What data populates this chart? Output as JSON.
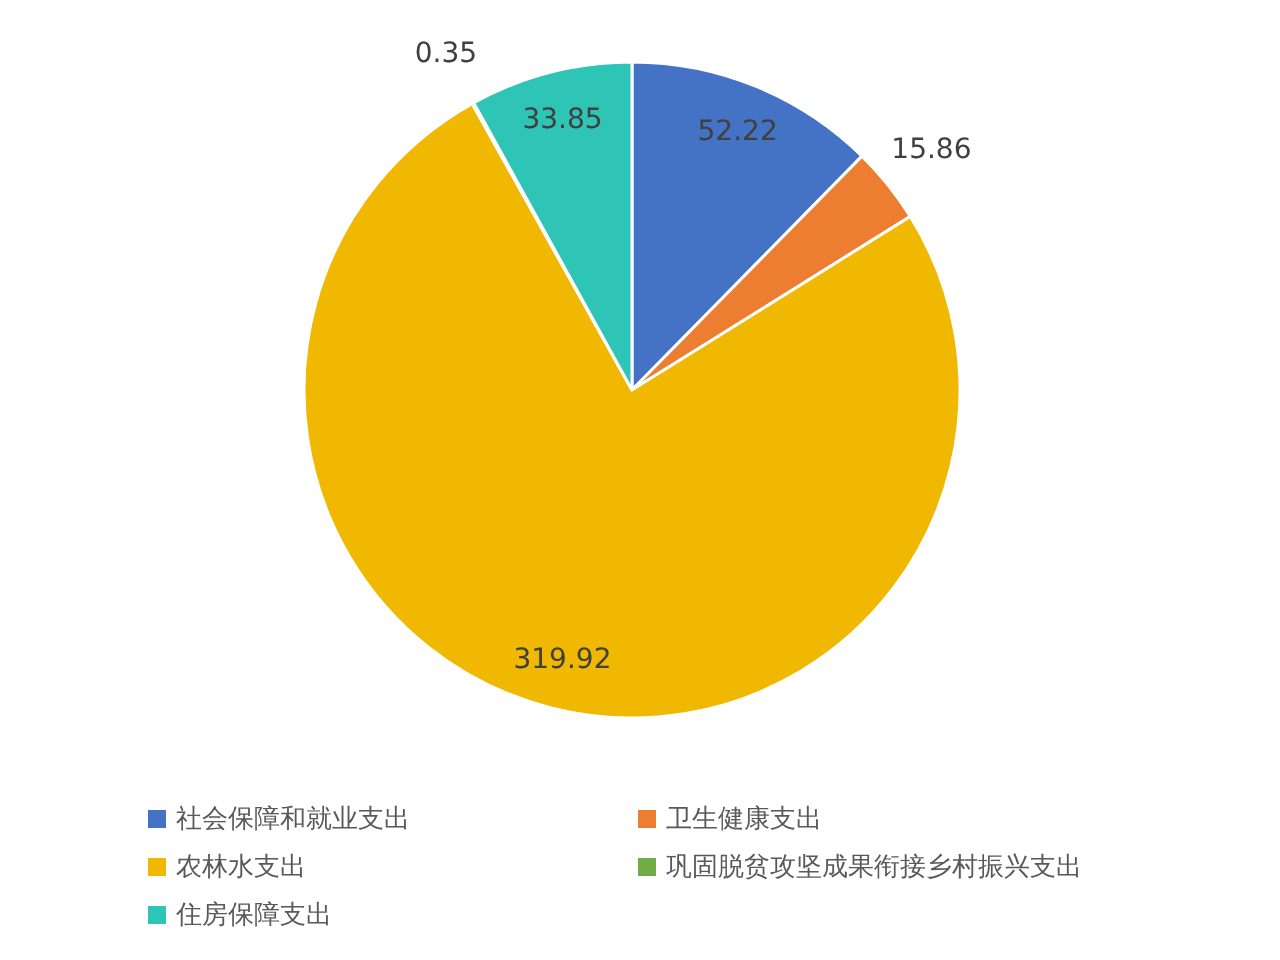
{
  "chart_data": {
    "type": "pie",
    "categories": [
      "社会保障和就业支出",
      "卫生健康支出",
      "农林水支出",
      "巩固脱贫攻坚成果衔接乡村振兴支出",
      "住房保障支出"
    ],
    "values": [
      52.22,
      15.86,
      319.92,
      0.35,
      33.85
    ],
    "colors": [
      "#4472c4",
      "#ed7d31",
      "#f0b800",
      "#70ad47",
      "#2ec4b6"
    ],
    "data_labels": true,
    "legend": "bottom"
  }
}
